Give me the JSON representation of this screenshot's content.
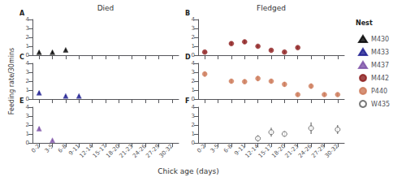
{
  "xlabel": "Chick age (days)",
  "legend_title": "Nest",
  "legend": "right",
  "chart_data": [
    {
      "type": "scatter",
      "title": "Died",
      "annotation": "A",
      "categories": [
        "0-2",
        "3-5",
        "6-8",
        "9-11",
        "12-14",
        "15-17",
        "18-20",
        "21-23",
        "24-26",
        "27-29",
        "30-32"
      ],
      "ylim": [
        0,
        4
      ],
      "yticks": [
        0,
        1,
        2,
        3,
        4
      ],
      "grid": false,
      "tick_labels": "y",
      "series": [
        {
          "name": "M430",
          "color": "#000000",
          "marker": "triangle",
          "values": [
            0.33,
            0.33,
            0.6,
            null,
            null,
            null,
            null,
            null,
            null,
            null,
            null
          ],
          "yerr": [
            0.08,
            0.08,
            0.1,
            null,
            null,
            null,
            null,
            null,
            null,
            null,
            null
          ]
        }
      ]
    },
    {
      "type": "scatter",
      "title": "Fledged",
      "annotation": "B",
      "categories": [
        "0-2",
        "3-5",
        "6-8",
        "9-11",
        "12-14",
        "15-17",
        "18-20",
        "21-23",
        "24-26",
        "27-29",
        "30-32"
      ],
      "ylim": [
        0,
        4
      ],
      "yticks": [
        0,
        1,
        2,
        3,
        4
      ],
      "grid": false,
      "tick_labels": "y",
      "series": [
        {
          "name": "M442",
          "color": "#8b1a1a",
          "marker": "circle",
          "values": [
            0.35,
            null,
            1.3,
            1.5,
            1.0,
            0.55,
            0.35,
            0.85,
            null,
            null,
            null
          ],
          "yerr": [
            0.1,
            null,
            0.2,
            0.2,
            0.15,
            0.1,
            0.1,
            0.15,
            null,
            null,
            null
          ]
        }
      ]
    },
    {
      "type": "scatter",
      "annotation": "C",
      "ylabel": "Feeding rate/30mins",
      "categories": [
        "0-2",
        "3-5",
        "6-8",
        "9-11",
        "12-14",
        "15-17",
        "18-20",
        "21-23",
        "24-26",
        "27-29",
        "30-32"
      ],
      "ylim": [
        0,
        4
      ],
      "yticks": [
        0,
        1,
        2,
        3,
        4
      ],
      "grid": false,
      "tick_labels": "y",
      "series": [
        {
          "name": "M433",
          "color": "#1a1a8e",
          "marker": "triangle",
          "values": [
            0.7,
            null,
            0.35,
            0.35,
            null,
            null,
            null,
            null,
            null,
            null,
            null
          ],
          "yerr": [
            0.15,
            null,
            0.1,
            0.1,
            null,
            null,
            null,
            null,
            null,
            null,
            null
          ]
        }
      ]
    },
    {
      "type": "scatter",
      "annotation": "D",
      "categories": [
        "0-2",
        "3-5",
        "6-8",
        "9-11",
        "12-14",
        "15-17",
        "18-20",
        "21-23",
        "24-26",
        "27-29",
        "30-32"
      ],
      "ylim": [
        0,
        4
      ],
      "yticks": [
        0,
        1,
        2,
        3,
        4
      ],
      "grid": false,
      "tick_labels": "y",
      "series": [
        {
          "name": "P440",
          "color": "#cc7755",
          "marker": "circle",
          "values": [
            2.8,
            null,
            2.0,
            1.95,
            2.3,
            2.0,
            1.65,
            0.5,
            1.45,
            0.5,
            0.5
          ],
          "yerr": [
            0.3,
            null,
            0.25,
            0.25,
            0.3,
            0.25,
            0.25,
            0.2,
            0.3,
            0.2,
            0.2
          ]
        }
      ]
    },
    {
      "type": "scatter",
      "annotation": "E",
      "categories": [
        "0-2",
        "3-5",
        "6-8",
        "9-11",
        "12-14",
        "15-17",
        "18-20",
        "21-23",
        "24-26",
        "27-29",
        "30-32"
      ],
      "ylim": [
        0,
        4
      ],
      "yticks": [
        0,
        1,
        2,
        3,
        4
      ],
      "grid": false,
      "series": [
        {
          "name": "M437",
          "color": "#7b4fa6",
          "marker": "triangle",
          "values": [
            1.6,
            0.3,
            null,
            null,
            null,
            null,
            null,
            null,
            null,
            null,
            null
          ],
          "yerr": [
            0.2,
            0.07,
            null,
            null,
            null,
            null,
            null,
            null,
            null,
            null,
            null
          ]
        }
      ]
    },
    {
      "type": "scatter",
      "annotation": "F",
      "categories": [
        "0-2",
        "3-5",
        "6-8",
        "9-11",
        "12-14",
        "15-17",
        "18-20",
        "21-23",
        "24-26",
        "27-29",
        "30-32"
      ],
      "ylim": [
        0,
        4
      ],
      "yticks": [
        0,
        1,
        2,
        3,
        4
      ],
      "grid": false,
      "series": [
        {
          "name": "W435",
          "color": "#555555",
          "marker": "circle_open",
          "values": [
            null,
            null,
            null,
            null,
            0.5,
            1.2,
            1.0,
            null,
            1.65,
            null,
            1.5
          ],
          "yerr": [
            null,
            null,
            null,
            null,
            0.35,
            0.5,
            0.3,
            null,
            0.65,
            null,
            0.5
          ]
        }
      ]
    }
  ]
}
